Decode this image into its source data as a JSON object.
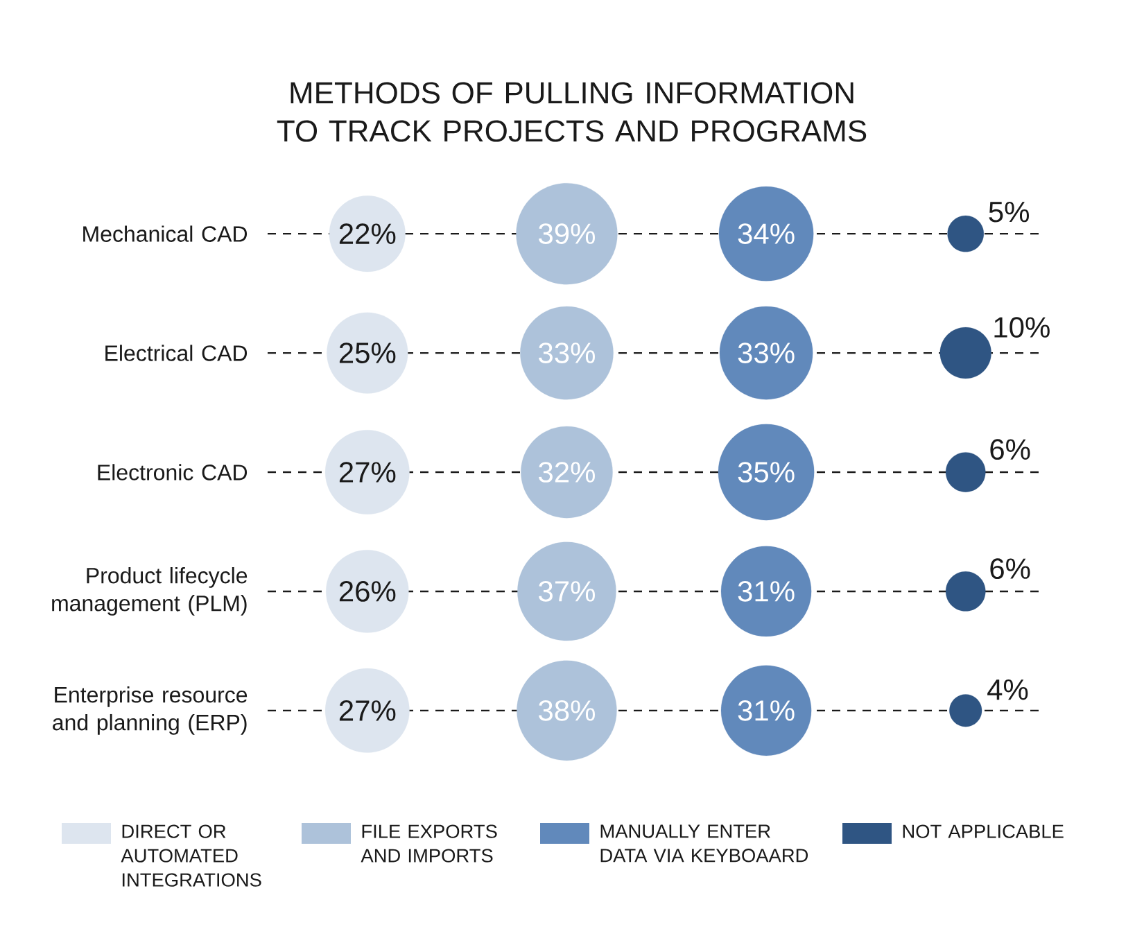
{
  "chart_data": {
    "type": "other",
    "title": "METHODS OF PULLING INFORMATION TO TRACK PROJECTS AND PROGRAMS",
    "categories": [
      "Mechanical CAD",
      "Electrical CAD",
      "Electronic CAD",
      "Product lifecycle management (PLM)",
      "Enterprise resource and planning (ERP)"
    ],
    "series": [
      {
        "name": "DIRECT OR AUTOMATED INTEGRATIONS",
        "color": "#dde5ef",
        "values": [
          22,
          25,
          27,
          26,
          27
        ],
        "value_labels": [
          "22%",
          "25%",
          "27%",
          "26%",
          "27%"
        ]
      },
      {
        "name": "FILE EXPORTS AND IMPORTS",
        "color": "#adc2da",
        "values": [
          39,
          33,
          32,
          37,
          38
        ],
        "value_labels": [
          "39%",
          "33%",
          "32%",
          "37%",
          "38%"
        ]
      },
      {
        "name": "MANUALLY ENTER DATA VIA KEYBOAARD",
        "color": "#6189bb",
        "values": [
          34,
          33,
          35,
          31,
          31
        ],
        "value_labels": [
          "34%",
          "33%",
          "35%",
          "31%",
          "31%"
        ]
      },
      {
        "name": "NOT APPLICABLE",
        "color": "#2f5583",
        "values": [
          5,
          10,
          6,
          6,
          4
        ],
        "value_labels": [
          "5%",
          "10%",
          "6%",
          "6%",
          "4%"
        ]
      }
    ],
    "legend": "bottom"
  }
}
